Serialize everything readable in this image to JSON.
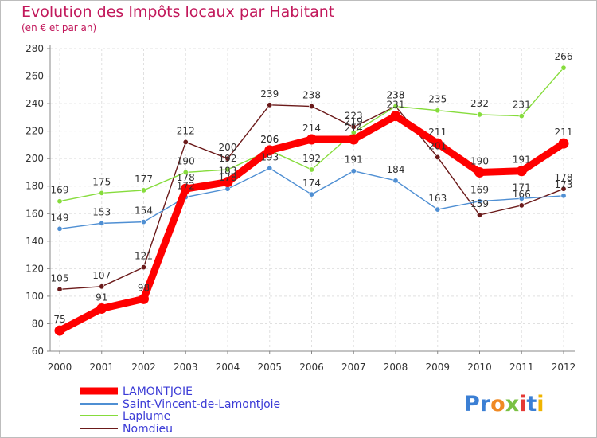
{
  "chart_data": {
    "type": "line",
    "title": "Evolution des Impôts locaux par Habitant",
    "subtitle": "(en € et par an)",
    "xlabel": "",
    "ylabel": "",
    "x": [
      "2000",
      "2001",
      "2002",
      "2003",
      "2004",
      "2005",
      "2006",
      "2007",
      "2008",
      "2009",
      "2010",
      "2011",
      "2012"
    ],
    "ylim": [
      60,
      280
    ],
    "yticks": [
      60,
      80,
      100,
      120,
      140,
      160,
      180,
      200,
      220,
      240,
      260,
      280
    ],
    "grid": true,
    "legend_position": "bottom-left",
    "series": [
      {
        "name": "LAMONTJOIE",
        "color": "#ff0000",
        "values": [
          75,
          91,
          98,
          178,
          183,
          206,
          214,
          214,
          231,
          211,
          190,
          191,
          211
        ]
      },
      {
        "name": "Saint-Vincent-de-Lamontjoie",
        "color": "#4f8fd3",
        "values": [
          149,
          153,
          154,
          172,
          178,
          193,
          174,
          191,
          184,
          163,
          169,
          171,
          173
        ]
      },
      {
        "name": "Laplume",
        "color": "#86dc3c",
        "values": [
          169,
          175,
          177,
          190,
          192,
          206,
          192,
          219,
          238,
          235,
          232,
          231,
          266
        ]
      },
      {
        "name": "Nomdieu",
        "color": "#6b1a1a",
        "values": [
          105,
          107,
          121,
          212,
          200,
          239,
          238,
          223,
          238,
          201,
          159,
          166,
          178
        ]
      }
    ]
  },
  "logo": {
    "text": "Proxiti",
    "letters": [
      {
        "ch": "P",
        "color": "#3b7fd4"
      },
      {
        "ch": "r",
        "color": "#3b7fd4"
      },
      {
        "ch": "o",
        "color": "#f08a24"
      },
      {
        "ch": "x",
        "color": "#7ac143"
      },
      {
        "ch": "i",
        "color": "#e53935"
      },
      {
        "ch": "t",
        "color": "#3b7fd4"
      },
      {
        "ch": "i",
        "color": "#f0b400"
      }
    ]
  }
}
